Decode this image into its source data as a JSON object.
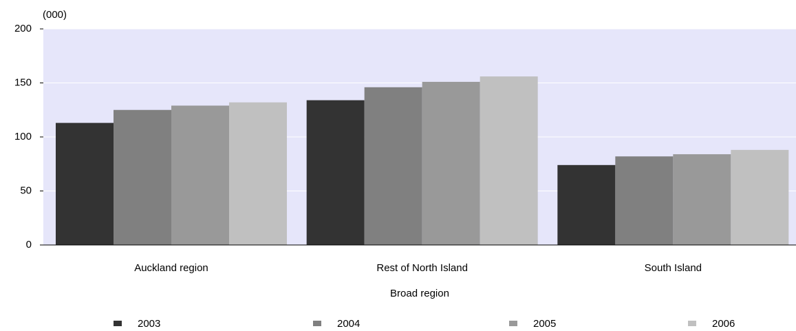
{
  "chart_data": {
    "type": "bar",
    "y_unit_label": "(000)",
    "x_label": "Broad region",
    "categories": [
      "Auckland region",
      "Rest of North Island",
      "South Island"
    ],
    "series": [
      {
        "name": "2003",
        "color": "#333333",
        "values": [
          113,
          134,
          74
        ]
      },
      {
        "name": "2004",
        "color": "#808080",
        "values": [
          125,
          146,
          82
        ]
      },
      {
        "name": "2005",
        "color": "#999999",
        "values": [
          129,
          151,
          84
        ]
      },
      {
        "name": "2006",
        "color": "#c0c0c0",
        "values": [
          132,
          156,
          88
        ]
      }
    ],
    "ylim": [
      0,
      200
    ],
    "yticks": [
      0,
      50,
      100,
      150,
      200
    ],
    "grid": true,
    "plot_background": "#e6e6fa",
    "grid_color": "#ffffff",
    "legend": "bottom"
  }
}
